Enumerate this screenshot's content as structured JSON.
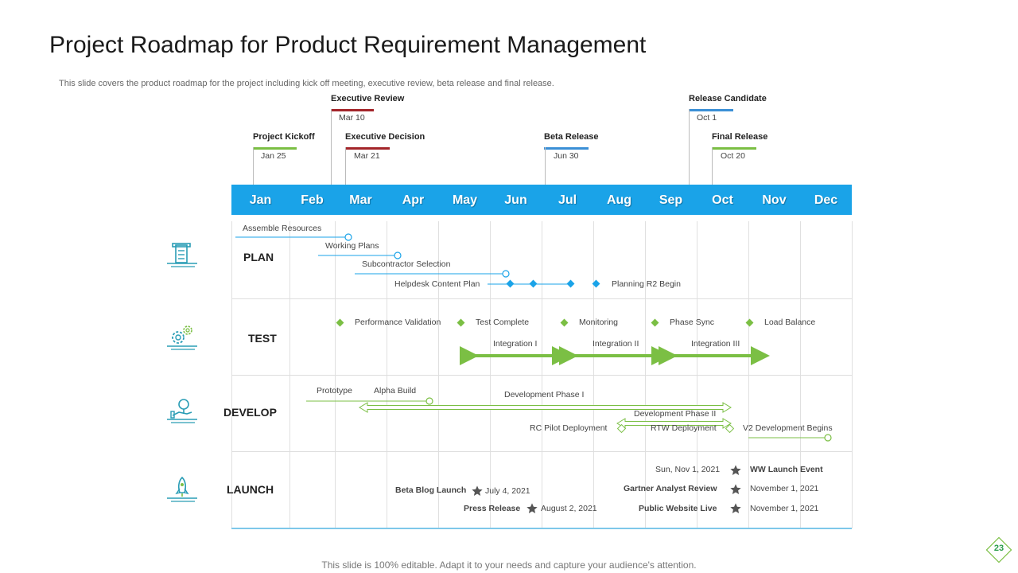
{
  "title": "Project Roadmap for Product Requirement Management",
  "subtitle": "This slide covers the product roadmap for the project including kick off meeting, executive review, beta release and final release.",
  "footer": "This slide is 100% editable. Adapt it to your needs and capture your audience's attention.",
  "page_number": "23",
  "months": [
    "Jan",
    "Feb",
    "Mar",
    "Apr",
    "May",
    "Jun",
    "Jul",
    "Aug",
    "Sep",
    "Oct",
    "Nov",
    "Dec"
  ],
  "milestones": [
    {
      "title": "Project Kickoff",
      "date": "Jan 25",
      "color": "#7bbf44"
    },
    {
      "title": "Executive Review",
      "date": "Mar 10",
      "color": "#a3252a"
    },
    {
      "title": "Executive Decision",
      "date": "Mar 21",
      "color": "#a3252a"
    },
    {
      "title": "Beta Release",
      "date": "Jun 30",
      "color": "#3b8fd6"
    },
    {
      "title": "Release Candidate",
      "date": "Oct 1",
      "color": "#3b8fd6"
    },
    {
      "title": "Final Release",
      "date": "Oct 20",
      "color": "#7bbf44"
    }
  ],
  "categories": {
    "plan": "PLAN",
    "test": "TEST",
    "develop": "DEVELOP",
    "launch": "LAUNCH"
  },
  "plan": {
    "assemble_resources": "Assemble Resources",
    "working_plans": "Working Plans",
    "subcontractor_selection": "Subcontractor Selection",
    "helpdesk_content_plan": "Helpdesk Content Plan",
    "planning_r2_begin": "Planning  R2 Begin"
  },
  "test": {
    "performance_validation": "Performance Validation",
    "test_complete": "Test Complete",
    "monitoring": "Monitoring",
    "phase_sync": "Phase Sync",
    "load_balance": "Load Balance",
    "integration_1": "Integration  I",
    "integration_2": "Integration  II",
    "integration_3": "Integration  III"
  },
  "develop": {
    "prototype": "Prototype",
    "alpha_build": "Alpha Build",
    "development_phase_1": "Development Phase I",
    "development_phase_2": "Development Phase II",
    "rc_pilot_deployment": "RC  Pilot  Deployment",
    "rtw_deployment": "RTW  Deployment",
    "v2_development_begins": "V2 Development  Begins"
  },
  "launch": {
    "beta_blog_launch": "Beta Blog Launch",
    "beta_blog_date": "July 4, 2021",
    "press_release": "Press Release",
    "press_release_date": "August 2, 2021",
    "ww_launch_date": "Sun, Nov 1, 2021",
    "ww_launch_event": "WW Launch Event",
    "gartner_analyst_review": "Gartner Analyst Review",
    "gartner_date": "November 1, 2021",
    "public_website_live": "Public Website Live",
    "public_website_date": "November 1, 2021"
  },
  "colors": {
    "band": "#1aa3e8",
    "green": "#7bbf44",
    "blue": "#1aa3e8",
    "red": "#a3252a",
    "teal": "#2a9db5"
  }
}
